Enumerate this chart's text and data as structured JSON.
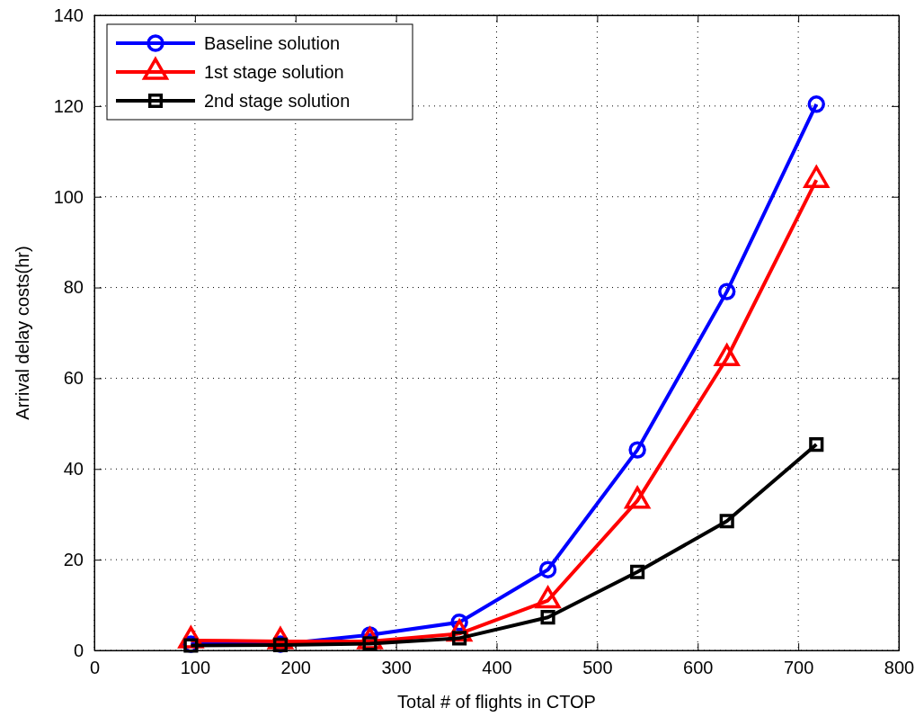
{
  "chart_data": {
    "type": "line",
    "xlabel": "Total # of flights in CTOP",
    "ylabel": "Arrival delay costs(hr)",
    "x": [
      96,
      185,
      274,
      363,
      451,
      540,
      629,
      718
    ],
    "series": [
      {
        "name": "Baseline solution",
        "color": "#0000ff",
        "marker": "circle",
        "values": [
          1.4,
          1.4,
          3.4,
          6.2,
          17.8,
          44.2,
          79.1,
          120.4
        ]
      },
      {
        "name": "1st stage solution",
        "color": "#ff0000",
        "marker": "triangle",
        "values": [
          2.2,
          2,
          2,
          3.7,
          11,
          33,
          64.4,
          103.7
        ]
      },
      {
        "name": "2nd stage solution",
        "color": "#000000",
        "marker": "square",
        "values": [
          1.1,
          1.2,
          1.5,
          2.7,
          7.3,
          17.3,
          28.5,
          45.4
        ]
      }
    ],
    "xlim": [
      0,
      800
    ],
    "xticks": [
      0,
      100,
      200,
      300,
      400,
      500,
      600,
      700,
      800
    ],
    "ylim": [
      0,
      140
    ],
    "yticks": [
      0,
      20,
      40,
      60,
      80,
      100,
      120,
      140
    ],
    "grid": true,
    "legend": "top left",
    "line_style": "solid"
  }
}
